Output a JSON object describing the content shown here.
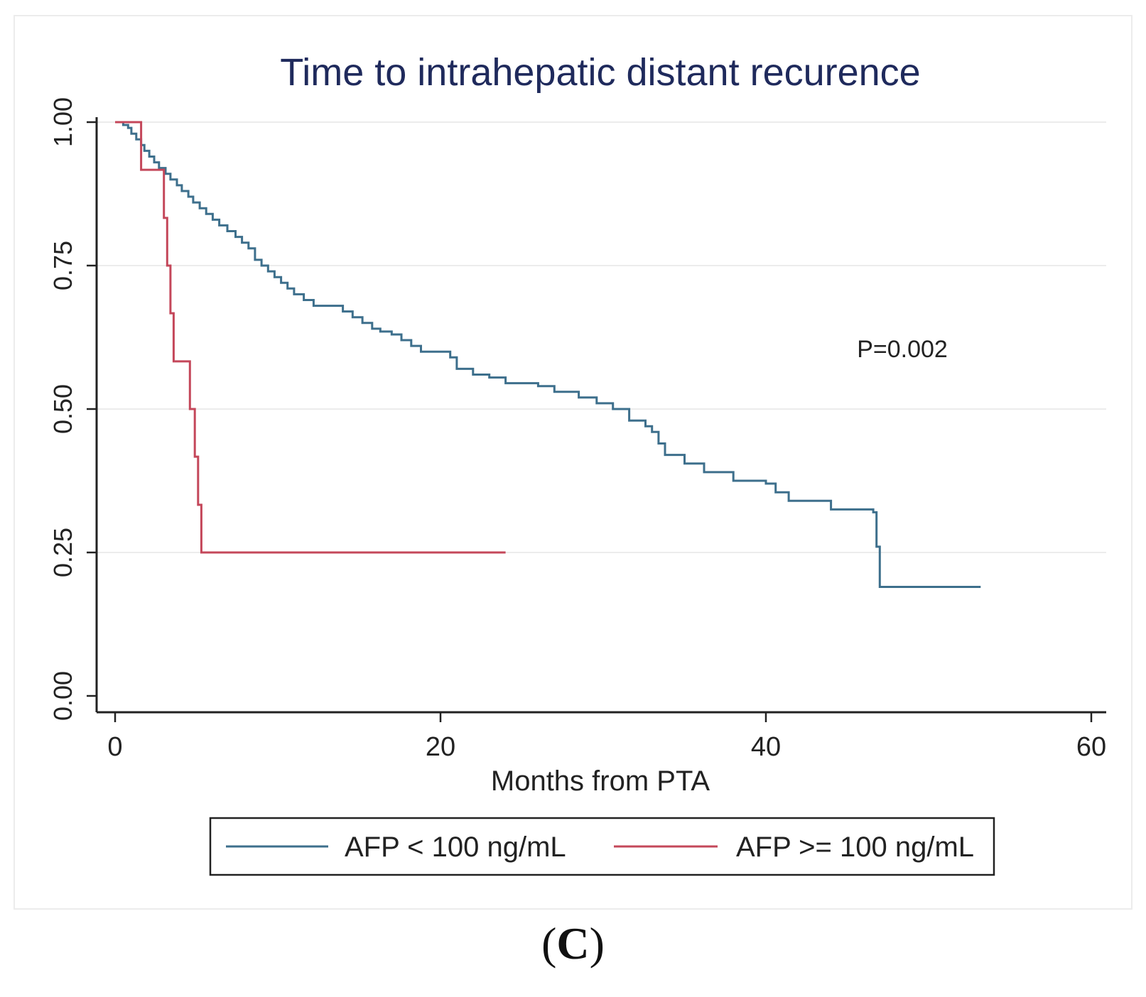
{
  "chart_data": {
    "type": "line",
    "subtype": "kaplan-meier step",
    "title": "Time to intrahepatic distant recurence",
    "xlabel": "Months from PTA",
    "ylabel": "",
    "xlim": [
      0,
      60
    ],
    "ylim": [
      0,
      1
    ],
    "x_ticks": [
      0,
      20,
      40,
      60
    ],
    "x_tick_labels": [
      "0",
      "20",
      "40",
      "60"
    ],
    "y_ticks": [
      0,
      0.25,
      0.5,
      0.75,
      1
    ],
    "y_tick_labels": [
      "0.00",
      "0.25",
      "0.50",
      "0.75",
      "1.00"
    ],
    "grid": "horizontal",
    "legend_position": "bottom",
    "annotation": "P=0.002",
    "colors": {
      "title": "#1f2a5c",
      "background": "#ffffff",
      "grid": "#ececec",
      "axis": "#222222"
    },
    "series": [
      {
        "name": "AFP < 100 ng/mL",
        "color": "#3d6f8c",
        "x": [
          0,
          0.5,
          0.8,
          1.0,
          1.3,
          1.6,
          1.8,
          2.1,
          2.4,
          2.7,
          3.1,
          3.4,
          3.8,
          4.1,
          4.5,
          4.8,
          5.2,
          5.6,
          6.0,
          6.4,
          6.9,
          7.4,
          7.8,
          8.2,
          8.6,
          9.0,
          9.4,
          9.8,
          10.2,
          10.6,
          11.0,
          11.6,
          12.2,
          12.6,
          14.0,
          14.6,
          15.2,
          15.8,
          16.3,
          17.0,
          17.6,
          18.2,
          18.8,
          20.0,
          20.6,
          21.0,
          22.0,
          23.0,
          24.0,
          26.0,
          27.0,
          28.5,
          29.6,
          30.6,
          31.6,
          32.6,
          33.0,
          33.4,
          33.8,
          35.0,
          36.2,
          38.0,
          40.0,
          40.6,
          41.4,
          44.0,
          46.6,
          46.8,
          47.0,
          50.0,
          53.2
        ],
        "y": [
          1.0,
          0.995,
          0.99,
          0.98,
          0.97,
          0.96,
          0.95,
          0.94,
          0.93,
          0.92,
          0.91,
          0.9,
          0.89,
          0.88,
          0.87,
          0.86,
          0.85,
          0.84,
          0.83,
          0.82,
          0.81,
          0.8,
          0.79,
          0.78,
          0.76,
          0.75,
          0.74,
          0.73,
          0.72,
          0.71,
          0.7,
          0.69,
          0.68,
          0.68,
          0.67,
          0.66,
          0.65,
          0.64,
          0.635,
          0.63,
          0.62,
          0.61,
          0.6,
          0.6,
          0.59,
          0.57,
          0.56,
          0.555,
          0.545,
          0.54,
          0.53,
          0.52,
          0.51,
          0.5,
          0.48,
          0.47,
          0.46,
          0.44,
          0.42,
          0.405,
          0.39,
          0.375,
          0.37,
          0.355,
          0.34,
          0.325,
          0.32,
          0.26,
          0.19,
          0.19,
          0.19
        ]
      },
      {
        "name": "AFP >= 100 ng/mL",
        "color": "#c4475a",
        "x": [
          0,
          1.6,
          2.7,
          3.0,
          3.2,
          3.4,
          3.6,
          4.1,
          4.6,
          4.9,
          5.1,
          5.3,
          5.5,
          24.0
        ],
        "y": [
          1.0,
          0.917,
          0.917,
          0.833,
          0.75,
          0.667,
          0.583,
          0.583,
          0.5,
          0.417,
          0.333,
          0.25,
          0.25,
          0.25
        ]
      }
    ]
  },
  "panel_label": "C"
}
